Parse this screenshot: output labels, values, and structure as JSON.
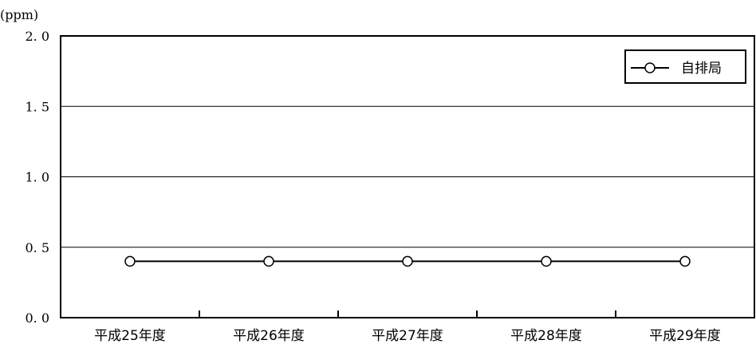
{
  "chart_data": {
    "type": "line",
    "unit_label": "(ppm)",
    "categories": [
      "平成25年度",
      "平成26年度",
      "平成27年度",
      "平成28年度",
      "平成29年度"
    ],
    "series": [
      {
        "name": "自排局",
        "values": [
          0.4,
          0.4,
          0.4,
          0.4,
          0.4
        ]
      }
    ],
    "ylim": [
      0.0,
      2.0
    ],
    "yticks": [
      0.0,
      0.5,
      1.0,
      1.5,
      2.0
    ],
    "ytick_labels": [
      "0. 0",
      "0. 5",
      "1. 0",
      "1. 5",
      "2. 0"
    ],
    "grid": "horizontal",
    "legend_position": "top-right",
    "line_color": "#000000",
    "marker": "open-circle"
  }
}
